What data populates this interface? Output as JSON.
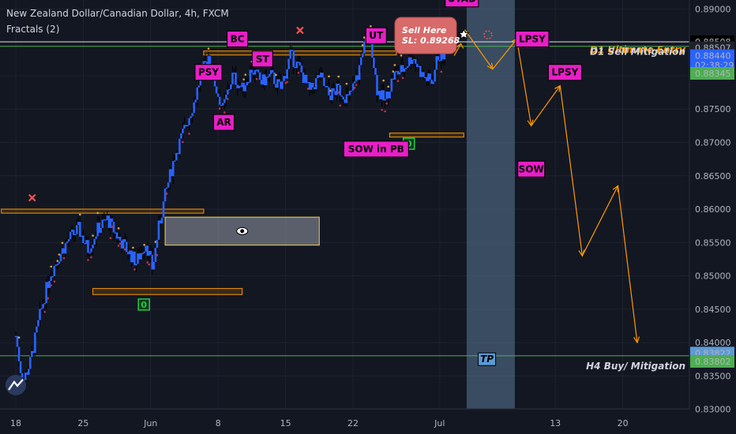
{
  "header": {
    "title": "New Zealand Dollar/Canadian Dollar, 4h, FXCM",
    "indicator": "Fractals (2)"
  },
  "chart_data": {
    "type": "candlestick",
    "ylim": [
      0.83,
      0.89
    ],
    "y_ticks": [
      0.83,
      0.835,
      0.84,
      0.845,
      0.85,
      0.855,
      0.86,
      0.865,
      0.87,
      0.875,
      0.88,
      0.885,
      0.89
    ],
    "y_tick_labels": [
      "0.83000",
      "0.83500",
      "0.84000",
      "0.84500",
      "0.85000",
      "0.85500",
      "0.86000",
      "0.86500",
      "0.87000",
      "0.87500",
      "0.88000",
      "0.88500",
      "0.89000"
    ],
    "x_ticks": [
      {
        "label": "18",
        "day": 0
      },
      {
        "label": "25",
        "day": 7
      },
      {
        "label": "Jun",
        "day": 14
      },
      {
        "label": "8",
        "day": 21
      },
      {
        "label": "15",
        "day": 28
      },
      {
        "label": "22",
        "day": 35
      },
      {
        "label": "Jul",
        "day": 44
      },
      {
        "label": "13",
        "day": 56
      },
      {
        "label": "20",
        "day": 63
      }
    ],
    "price_path": [
      [
        0,
        0.841
      ],
      [
        0.7,
        0.834
      ],
      [
        1.5,
        0.837
      ],
      [
        2.5,
        0.844
      ],
      [
        3.5,
        0.85
      ],
      [
        4.5,
        0.853
      ],
      [
        5.5,
        0.8555
      ],
      [
        6.5,
        0.857
      ],
      [
        7.5,
        0.854
      ],
      [
        8.5,
        0.857
      ],
      [
        9.5,
        0.8585
      ],
      [
        10.5,
        0.856
      ],
      [
        11.5,
        0.854
      ],
      [
        12.5,
        0.852
      ],
      [
        13.5,
        0.855
      ],
      [
        14.2,
        0.851
      ],
      [
        14.8,
        0.857
      ],
      [
        15.5,
        0.862
      ],
      [
        16.5,
        0.868
      ],
      [
        17.5,
        0.872
      ],
      [
        18.5,
        0.876
      ],
      [
        19.2,
        0.88
      ],
      [
        20,
        0.883
      ],
      [
        20.8,
        0.878
      ],
      [
        21.5,
        0.875
      ],
      [
        22.5,
        0.88
      ],
      [
        23.5,
        0.878
      ],
      [
        24.5,
        0.881
      ],
      [
        25.5,
        0.879
      ],
      [
        26.5,
        0.88
      ],
      [
        27.5,
        0.878
      ],
      [
        28.5,
        0.883
      ],
      [
        29.5,
        0.881
      ],
      [
        30.5,
        0.8775
      ],
      [
        31.5,
        0.88
      ],
      [
        32.5,
        0.877
      ],
      [
        33.5,
        0.878
      ],
      [
        34.5,
        0.8765
      ],
      [
        35.5,
        0.88
      ],
      [
        36,
        0.884
      ],
      [
        36.8,
        0.886
      ],
      [
        37.5,
        0.878
      ],
      [
        38.3,
        0.876
      ],
      [
        39.2,
        0.88
      ],
      [
        40.2,
        0.881
      ],
      [
        41.2,
        0.883
      ],
      [
        42.2,
        0.88
      ],
      [
        43.2,
        0.879
      ],
      [
        43.8,
        0.883
      ],
      [
        44.3,
        0.883
      ],
      [
        44.8,
        0.886
      ],
      [
        45.4,
        0.888
      ]
    ],
    "horizontal_lines": [
      {
        "name": "D1 Ultimate Entry",
        "price": 0.88508,
        "color": "#e0e0e0",
        "label_color": "#ff9800"
      },
      {
        "name": "D1 Sell Mitigation",
        "price": 0.8844,
        "color": "#4caf50",
        "label_color": "#d1d4dc"
      },
      {
        "name": "H4 Buy/ Mitigation",
        "price": 0.83802,
        "color": "#4caf50",
        "label_color": "#d1d4dc"
      }
    ],
    "zones": [
      {
        "x1": -1.5,
        "x2": 19.5,
        "y1": 0.86,
        "y2": 0.8594
      },
      {
        "x1": 8,
        "x2": 23.5,
        "y1": 0.8481,
        "y2": 0.8472
      },
      {
        "x1": 19.5,
        "x2": 39.5,
        "y1": 0.8837,
        "y2": 0.8831
      },
      {
        "x1": 38.8,
        "x2": 46.5,
        "y1": 0.8714,
        "y2": 0.8708
      }
    ],
    "eye_box": {
      "x1": 15.5,
      "x2": 31.5,
      "y1": 0.8588,
      "y2": 0.8546
    },
    "shaded_region": {
      "x1": 46.8,
      "x2": 51.8
    },
    "wyckoff_labels": [
      {
        "text": "PSY",
        "day": 20,
        "price": 0.8805
      },
      {
        "text": "BC",
        "day": 23,
        "price": 0.8855
      },
      {
        "text": "ST",
        "day": 25.6,
        "price": 0.8825
      },
      {
        "text": "AR",
        "day": 21.6,
        "price": 0.873
      },
      {
        "text": "UT",
        "day": 37.4,
        "price": 0.886
      },
      {
        "text": "SOW in PB",
        "day": 37.4,
        "price": 0.869
      },
      {
        "text": "UTAD",
        "day": 46.3,
        "price": 0.8915
      },
      {
        "text": "LPSY",
        "day": 53.6,
        "price": 0.8855
      },
      {
        "text": "LPSY",
        "day": 57,
        "price": 0.8805
      },
      {
        "text": "SOW",
        "day": 53.5,
        "price": 0.866
      }
    ],
    "tp_label": {
      "text": "TP",
      "day": 48.9,
      "price": 0.8375
    },
    "sell_note": {
      "line1": "Sell Here",
      "line2": "SL: 0.89268"
    },
    "projection": [
      [
        46.6,
        0.8869
      ],
      [
        49.5,
        0.881
      ],
      [
        52,
        0.8855
      ],
      [
        53.5,
        0.8725
      ],
      [
        56.5,
        0.8785
      ],
      [
        58.8,
        0.853
      ],
      [
        62.5,
        0.8635
      ],
      [
        64.5,
        0.84
      ]
    ],
    "markers": [
      {
        "type": "x",
        "day": 29.5,
        "price": 0.8868
      },
      {
        "type": "x",
        "day": 1.7,
        "price": 0.8617
      },
      {
        "type": "zero-badge",
        "day": 13.3,
        "price": 0.8457
      },
      {
        "type": "zero-badge",
        "day": 40.8,
        "price": 0.8698
      },
      {
        "type": "crosshair",
        "day": 49,
        "price": 0.88565
      }
    ]
  },
  "price_labels": [
    {
      "text": "0.88508",
      "price": 0.88508,
      "bg": "#000000",
      "fg": "#ffffff"
    },
    {
      "text": "0.88507",
      "price": 0.8842,
      "bg": "#1e222d",
      "fg": "#d1d4dc"
    },
    {
      "text": "0.88440",
      "price": 0.883,
      "bg": "#2962ff",
      "fg": "#ffffff"
    },
    {
      "text": "02:38:29",
      "price": 0.8816,
      "bg": "#2962ff",
      "fg": "#ffffff"
    },
    {
      "text": "0.88345",
      "price": 0.88035,
      "bg": "#4caf50",
      "fg": "#000000"
    },
    {
      "text": "0.83822",
      "price": 0.83842,
      "bg": "#5b9bd5",
      "fg": "#000000"
    },
    {
      "text": "0.83802",
      "price": 0.83718,
      "bg": "#4caf50",
      "fg": "#000000"
    }
  ],
  "colors": {
    "background": "#131722",
    "grid": "#1e2230",
    "candle": "#2962ff",
    "wick": "#000000",
    "zone": "#ff9800",
    "label_fill": "#e91ec7",
    "projection": "#ff9800",
    "shaded": "#5a7897"
  }
}
